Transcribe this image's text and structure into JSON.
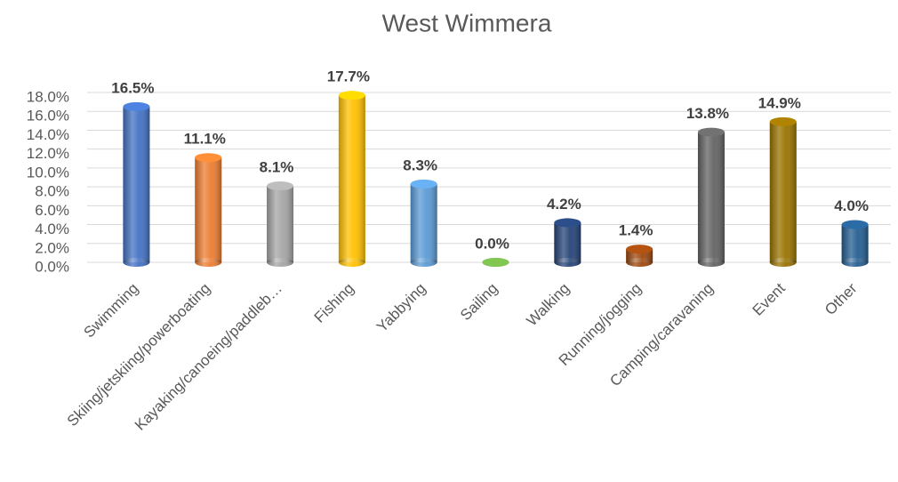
{
  "chart_data": {
    "type": "bar",
    "title": "West Wimmera",
    "categories": [
      "Swimming",
      "Skiing/jetskiing/powerboating",
      "Kayaking/canoeing/paddleb…",
      "Fishing",
      "Yabbying",
      "Sailing",
      "Walking",
      "Running/jogging",
      "Camping/caravaning",
      "Event",
      "Other"
    ],
    "values": [
      16.5,
      11.1,
      8.1,
      17.7,
      8.3,
      0.0,
      4.2,
      1.4,
      13.8,
      14.9,
      4.0
    ],
    "value_labels": [
      "16.5%",
      "11.1%",
      "8.1%",
      "17.7%",
      "8.3%",
      "0.0%",
      "4.2%",
      "1.4%",
      "13.8%",
      "14.9%",
      "4.0%"
    ],
    "colors": [
      "#4472c4",
      "#ed7d31",
      "#a5a5a5",
      "#ffc000",
      "#5b9bd5",
      "#70ad47",
      "#264478",
      "#9e480e",
      "#636363",
      "#997300",
      "#255e91"
    ],
    "ylim": [
      0,
      18
    ],
    "yticks": [
      {
        "value": 0,
        "label": "0.0%"
      },
      {
        "value": 2,
        "label": "2.0%"
      },
      {
        "value": 4,
        "label": "4.0%"
      },
      {
        "value": 6,
        "label": "6.0%"
      },
      {
        "value": 8,
        "label": "8.0%"
      },
      {
        "value": 10,
        "label": "10.0%"
      },
      {
        "value": 12,
        "label": "12.0%"
      },
      {
        "value": 14,
        "label": "14.0%"
      },
      {
        "value": 16,
        "label": "16.0%"
      },
      {
        "value": 18,
        "label": "18.0%"
      }
    ],
    "grid": true
  }
}
